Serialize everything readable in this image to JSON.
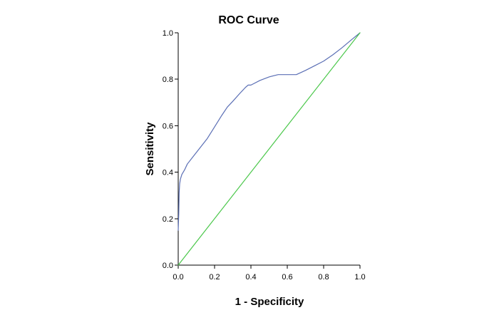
{
  "chart_data": {
    "type": "line",
    "title": "ROC Curve",
    "xlabel": "1 - Specificity",
    "ylabel": "Sensitivity",
    "xlim": [
      0,
      1
    ],
    "ylim": [
      0,
      1
    ],
    "xticks": [
      "0.0",
      "0.2",
      "0.4",
      "0.6",
      "0.8",
      "1.0"
    ],
    "yticks": [
      "0.0",
      "0.2",
      "0.4",
      "0.6",
      "0.8",
      "1.0"
    ],
    "grid": false,
    "legend": "none",
    "series": [
      {
        "color": "#5b6fb5",
        "x": [
          0.0,
          0.003,
          0.005,
          0.008,
          0.012,
          0.02,
          0.035,
          0.05,
          0.08,
          0.12,
          0.16,
          0.2,
          0.24,
          0.27,
          0.3,
          0.34,
          0.37,
          0.385,
          0.4,
          0.45,
          0.5,
          0.55,
          0.6,
          0.65,
          0.7,
          0.75,
          0.8,
          0.85,
          0.9,
          0.95,
          1.0
        ],
        "y": [
          0.15,
          0.22,
          0.31,
          0.35,
          0.37,
          0.39,
          0.41,
          0.435,
          0.465,
          0.505,
          0.545,
          0.595,
          0.645,
          0.68,
          0.705,
          0.74,
          0.765,
          0.775,
          0.775,
          0.795,
          0.81,
          0.82,
          0.82,
          0.82,
          0.838,
          0.858,
          0.878,
          0.905,
          0.935,
          0.968,
          1.0
        ]
      },
      {
        "color": "#4cc84c",
        "x": [
          0.0,
          1.0
        ],
        "y": [
          0.0,
          1.0
        ]
      }
    ]
  }
}
